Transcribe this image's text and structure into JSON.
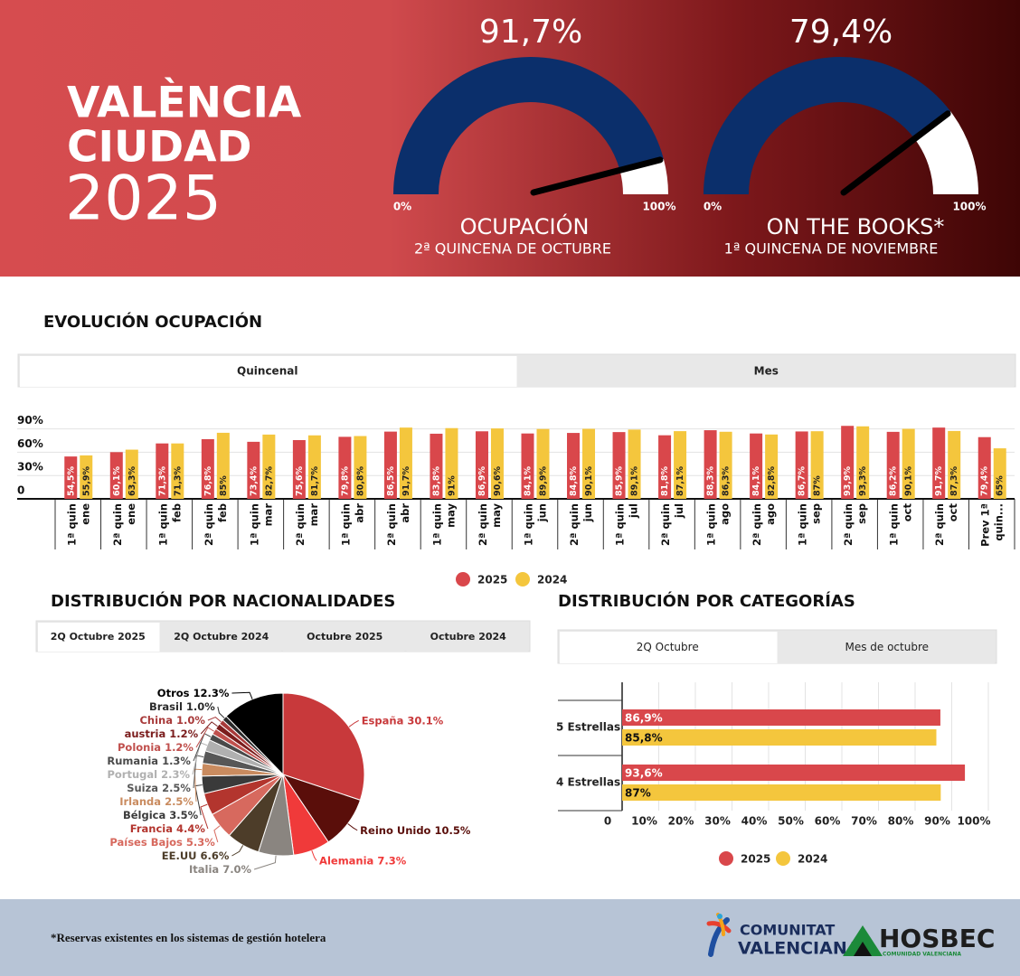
{
  "header": {
    "title": [
      "VALÈNCIA",
      "CIUDAD",
      "2025"
    ]
  },
  "chart_data": [
    {
      "type": "gauge",
      "title": "OCUPACIÓN",
      "subtitle": "2ª QUINCENA DE OCTUBRE",
      "values": [
        91.7
      ],
      "value_labels": [
        "91,7%"
      ],
      "ylim": [
        0,
        100
      ],
      "yticks": [
        {
          "value": 0,
          "label": "0%"
        },
        {
          "value": 100,
          "label": "100%"
        }
      ],
      "color": "#0b2f6b"
    },
    {
      "type": "gauge",
      "title": "ON THE BOOKS*",
      "subtitle": "1ª QUINCENA DE NOVIEMBRE",
      "values": [
        79.4
      ],
      "value_labels": [
        "79,4%"
      ],
      "ylim": [
        0,
        100
      ],
      "yticks": [
        {
          "value": 0,
          "label": "0%"
        },
        {
          "value": 100,
          "label": "100%"
        }
      ],
      "color": "#0b2f6b"
    },
    {
      "type": "bar",
      "title": "EVOLUCIÓN OCUPACIÓN",
      "tabs": [
        "Quincenal",
        "Mes"
      ],
      "categories": [
        [
          "1ª quin",
          "ene"
        ],
        [
          "2ª quin",
          "ene"
        ],
        [
          "1ª quin",
          "feb"
        ],
        [
          "2ª quin",
          "feb"
        ],
        [
          "1ª quin",
          "mar"
        ],
        [
          "2ª quin",
          "mar"
        ],
        [
          "1ª quin",
          "abr"
        ],
        [
          "2ª quin",
          "abr"
        ],
        [
          "1ª quin",
          "may"
        ],
        [
          "2ª quin",
          "may"
        ],
        [
          "1ª quin",
          "jun"
        ],
        [
          "2ª quin",
          "jun"
        ],
        [
          "1ª quin",
          "jul"
        ],
        [
          "2ª quin",
          "jul"
        ],
        [
          "1ª quin",
          "ago"
        ],
        [
          "2ª quin",
          "ago"
        ],
        [
          "1ª quin",
          "sep"
        ],
        [
          "2ª quin",
          "sep"
        ],
        [
          "1ª quin",
          "oct"
        ],
        [
          "2ª quin",
          "oct"
        ],
        [
          "Prev 1ª",
          "quin..."
        ]
      ],
      "series": [
        {
          "name": "2025",
          "color": "#d9474b",
          "values": [
            54.5,
            60.1,
            71.3,
            76.8,
            73.4,
            75.6,
            79.8,
            86.5,
            83.8,
            86.9,
            84.1,
            84.8,
            85.9,
            81.8,
            88.3,
            84.1,
            86.7,
            93.9,
            86.2,
            91.7,
            79.4
          ],
          "value_labels": [
            "54,5%",
            "60,1%",
            "71,3%",
            "76,8%",
            "73,4%",
            "75,6%",
            "79,8%",
            "86,5%",
            "83,8%",
            "86,9%",
            "84,1%",
            "84,8%",
            "85,9%",
            "81,8%",
            "88,3%",
            "84,1%",
            "86,7%",
            "93,9%",
            "86,2%",
            "91,7%",
            "79,4%"
          ]
        },
        {
          "name": "2024",
          "color": "#f4c63d",
          "values": [
            55.9,
            63.3,
            71.3,
            85,
            82.7,
            81.7,
            80.8,
            91.7,
            91,
            90.6,
            89.9,
            90.1,
            89.1,
            87.1,
            86.3,
            82.8,
            87,
            93.3,
            90.1,
            87.3,
            65
          ],
          "value_labels": [
            "55,9%",
            "63,3%",
            "71,3%",
            "85%",
            "82,7%",
            "81,7%",
            "80,8%",
            "91,7%",
            "91%",
            "90,6%",
            "89,9%",
            "90,1%",
            "89,1%",
            "87,1%",
            "86,3%",
            "82,8%",
            "87%",
            "93,3%",
            "90,1%",
            "87,3%",
            "65%"
          ]
        }
      ],
      "ylim": [
        0,
        100
      ],
      "yticks": [
        0,
        {
          "value": 30,
          "label": "30%"
        },
        {
          "value": 60,
          "label": "60%"
        },
        {
          "value": 90,
          "label": "90%"
        }
      ],
      "grid": true
    },
    {
      "type": "pie",
      "title": "DISTRIBUCIÓN POR NACIONALIDADES",
      "tabs": [
        "2Q Octubre 2025",
        "2Q Octubre 2024",
        "Octubre 2025",
        "Octubre 2024"
      ],
      "categories": [
        "España",
        "Reino Unido",
        "Alemania",
        "Italia",
        "EE.UU",
        "Países Bajos",
        "Francia",
        "Bélgica",
        "Irlanda",
        "Suiza",
        "Portugal",
        "Rumania",
        "Polonia",
        "austria",
        "China",
        "Brasil",
        "Otros"
      ],
      "values": [
        30.1,
        10.5,
        7.3,
        7.0,
        6.6,
        5.3,
        4.4,
        3.5,
        2.5,
        2.5,
        2.3,
        1.3,
        1.2,
        1.2,
        1.0,
        1.0,
        12.3
      ],
      "value_labels": [
        "30.1%",
        "10.5%",
        "7.3%",
        "7.0%",
        "6.6%",
        "5.3%",
        "4.4%",
        "3.5%",
        "2.5%",
        "2.5%",
        "2.3%",
        "1.3%",
        "1.2%",
        "1.2%",
        "1.0%",
        "1.0%",
        "12.3%"
      ],
      "colors": [
        "#c8393b",
        "#5a0e0a",
        "#f03a3a",
        "#8a8580",
        "#4d3d29",
        "#d7695e",
        "#b3352e",
        "#3a3a3a",
        "#c98b5f",
        "#575757",
        "#b0b0b0",
        "#4a4a4a",
        "#c0504d",
        "#7b1d1d",
        "#a83a3a",
        "#2b2b2b",
        "#000000"
      ]
    },
    {
      "type": "barh",
      "title": "DISTRIBUCIÓN POR CATEGORÍAS",
      "tabs": [
        "2Q Octubre",
        "Mes de octubre"
      ],
      "categories": [
        "5 Estrellas",
        "4 Estrellas"
      ],
      "series": [
        {
          "name": "2025",
          "color": "#d9474b",
          "values": [
            86.9,
            93.6
          ],
          "value_labels": [
            "86,9%",
            "93,6%"
          ]
        },
        {
          "name": "2024",
          "color": "#f4c63d",
          "values": [
            85.8,
            87
          ],
          "value_labels": [
            "85,8%",
            "87%"
          ]
        }
      ],
      "xlim": [
        0,
        100
      ],
      "xticks": [
        0,
        {
          "value": 10,
          "label": "10%"
        },
        {
          "value": 20,
          "label": "20%"
        },
        {
          "value": 30,
          "label": "30%"
        },
        {
          "value": 40,
          "label": "40%"
        },
        {
          "value": 50,
          "label": "50%"
        },
        {
          "value": 60,
          "label": "60%"
        },
        {
          "value": 70,
          "label": "70%"
        },
        {
          "value": 80,
          "label": "80%"
        },
        {
          "value": 90,
          "label": "90%"
        },
        {
          "value": 100,
          "label": "100%"
        }
      ],
      "grid": true
    }
  ],
  "footer": {
    "note": "*Reservas existentes en los sistemas de gestión hotelera",
    "logos": [
      "COMUNITAT",
      "VALENCIANA",
      "HOSBEC",
      "COMUNIDAD VALENCIANA"
    ]
  }
}
